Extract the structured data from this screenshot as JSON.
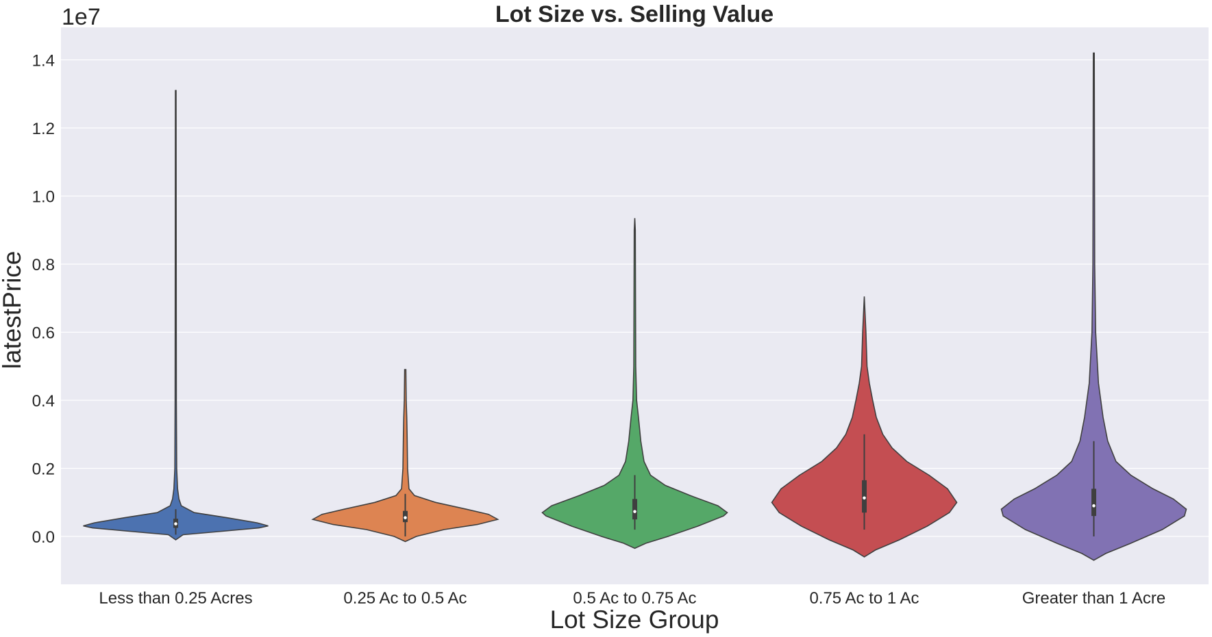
{
  "chart_data": {
    "type": "violin",
    "title": "Lot Size vs. Selling Value",
    "xlabel": "Lot Size Group",
    "ylabel": "latestPrice",
    "y_offset_label": "1e7",
    "y_tick_values": [
      0.0,
      0.2,
      0.4,
      0.6,
      0.8,
      1.0,
      1.2,
      1.4
    ],
    "y_tick_labels": [
      "0.0",
      "0.2",
      "0.4",
      "0.6",
      "0.8",
      "1.0",
      "1.2",
      "1.4"
    ],
    "ylim": [
      -0.14,
      1.49
    ],
    "grid": true,
    "background": "#eaeaf2",
    "categories": [
      {
        "name": "Less than 0.25 Acres",
        "color": "#4c72b0",
        "min": -0.01,
        "max": 1.31,
        "q1": 0.025,
        "median": 0.037,
        "q3": 0.052,
        "whisker_low": 0.005,
        "whisker_high": 0.08,
        "profile": [
          [
            -0.01,
            0.0
          ],
          [
            0.005,
            0.08
          ],
          [
            0.015,
            0.5
          ],
          [
            0.025,
            0.9
          ],
          [
            0.031,
            1.0
          ],
          [
            0.04,
            0.88
          ],
          [
            0.055,
            0.55
          ],
          [
            0.07,
            0.2
          ],
          [
            0.09,
            0.06
          ],
          [
            0.11,
            0.035
          ],
          [
            0.14,
            0.02
          ],
          [
            0.2,
            0.01
          ],
          [
            0.4,
            0.007
          ],
          [
            1.31,
            0.004
          ]
        ]
      },
      {
        "name": "0.25 Ac to 0.5 Ac",
        "color": "#dd8452",
        "min": -0.015,
        "max": 0.49,
        "q1": 0.042,
        "median": 0.055,
        "q3": 0.075,
        "whisker_low": 0.0,
        "whisker_high": 0.125,
        "profile": [
          [
            -0.015,
            0.0
          ],
          [
            0.0,
            0.12
          ],
          [
            0.02,
            0.42
          ],
          [
            0.035,
            0.78
          ],
          [
            0.05,
            1.0
          ],
          [
            0.065,
            0.9
          ],
          [
            0.08,
            0.66
          ],
          [
            0.1,
            0.33
          ],
          [
            0.12,
            0.1
          ],
          [
            0.14,
            0.04
          ],
          [
            0.2,
            0.025
          ],
          [
            0.3,
            0.02
          ],
          [
            0.35,
            0.016
          ],
          [
            0.4,
            0.01
          ],
          [
            0.49,
            0.007
          ]
        ]
      },
      {
        "name": "0.5 Ac to 0.75 Ac",
        "color": "#55a868",
        "min": -0.035,
        "max": 0.935,
        "q1": 0.05,
        "median": 0.073,
        "q3": 0.11,
        "whisker_low": 0.02,
        "whisker_high": 0.18,
        "profile": [
          [
            -0.035,
            0.0
          ],
          [
            -0.02,
            0.12
          ],
          [
            0.0,
            0.36
          ],
          [
            0.03,
            0.68
          ],
          [
            0.06,
            0.96
          ],
          [
            0.07,
            1.0
          ],
          [
            0.09,
            0.9
          ],
          [
            0.12,
            0.6
          ],
          [
            0.15,
            0.33
          ],
          [
            0.18,
            0.17
          ],
          [
            0.22,
            0.1
          ],
          [
            0.28,
            0.065
          ],
          [
            0.35,
            0.04
          ],
          [
            0.4,
            0.02
          ],
          [
            0.5,
            0.01
          ],
          [
            0.9,
            0.006
          ],
          [
            0.935,
            0.0
          ]
        ]
      },
      {
        "name": "0.75 Ac to 1 Ac",
        "color": "#c44e52",
        "min": -0.06,
        "max": 0.705,
        "q1": 0.07,
        "median": 0.113,
        "q3": 0.165,
        "whisker_low": 0.02,
        "whisker_high": 0.3,
        "profile": [
          [
            -0.06,
            0.0
          ],
          [
            -0.04,
            0.12
          ],
          [
            -0.01,
            0.38
          ],
          [
            0.03,
            0.68
          ],
          [
            0.07,
            0.92
          ],
          [
            0.1,
            1.0
          ],
          [
            0.14,
            0.9
          ],
          [
            0.18,
            0.7
          ],
          [
            0.22,
            0.46
          ],
          [
            0.26,
            0.3
          ],
          [
            0.3,
            0.2
          ],
          [
            0.35,
            0.13
          ],
          [
            0.4,
            0.09
          ],
          [
            0.45,
            0.055
          ],
          [
            0.5,
            0.03
          ],
          [
            0.6,
            0.018
          ],
          [
            0.705,
            0.0
          ]
        ]
      },
      {
        "name": "Greater than 1 Acre",
        "color": "#8172b3",
        "min": -0.07,
        "max": 1.42,
        "q1": 0.06,
        "median": 0.09,
        "q3": 0.14,
        "whisker_low": 0.0,
        "whisker_high": 0.28,
        "profile": [
          [
            -0.07,
            0.0
          ],
          [
            -0.05,
            0.13
          ],
          [
            -0.02,
            0.4
          ],
          [
            0.02,
            0.74
          ],
          [
            0.06,
            0.98
          ],
          [
            0.08,
            1.0
          ],
          [
            0.11,
            0.86
          ],
          [
            0.14,
            0.64
          ],
          [
            0.18,
            0.4
          ],
          [
            0.22,
            0.24
          ],
          [
            0.28,
            0.15
          ],
          [
            0.35,
            0.1
          ],
          [
            0.45,
            0.05
          ],
          [
            0.6,
            0.02
          ],
          [
            0.8,
            0.01
          ],
          [
            1.42,
            0.005
          ]
        ]
      }
    ]
  }
}
